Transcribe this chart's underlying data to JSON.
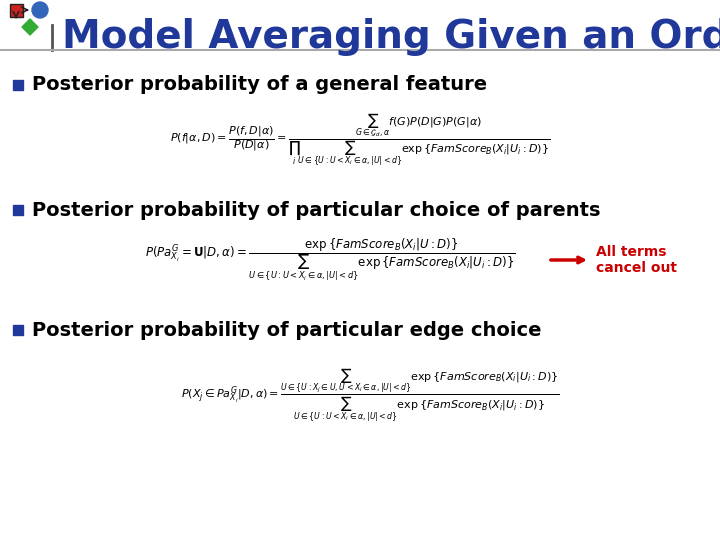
{
  "title": "Model Averaging Given an Order",
  "title_color": "#1F3899",
  "title_fontsize": 28,
  "bg_color": "#FFFFFF",
  "bullet_color": "#1F3899",
  "bullet1": "Posterior probability of a general feature",
  "bullet2": "Posterior probability of particular choice of parents",
  "bullet3": "Posterior probability of particular edge choice",
  "annotation_text": "All terms\ncancel out",
  "annotation_color": "#CC0000",
  "arrow_color": "#CC0000"
}
